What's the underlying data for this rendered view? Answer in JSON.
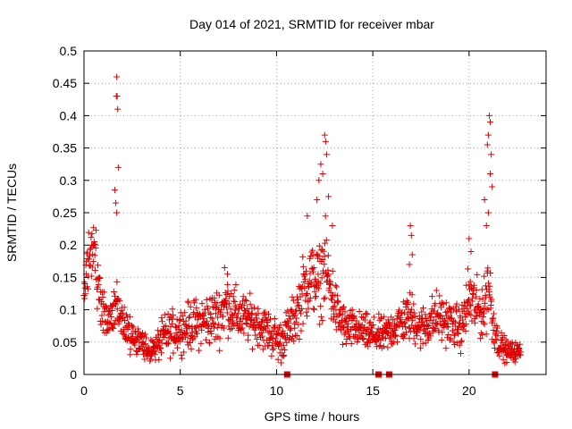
{
  "chart_data": {
    "type": "scatter",
    "title": "Day 014 of 2021, SRMTID for receiver mbar",
    "xlabel": "GPS time / hours",
    "ylabel": "SRMTID / TECUs",
    "xlim": [
      0,
      24
    ],
    "ylim": [
      0,
      0.5
    ],
    "x_ticks": [
      0,
      5,
      10,
      15,
      20
    ],
    "x_tick_labels": [
      "0",
      "5",
      "10",
      "15",
      "20"
    ],
    "y_ticks": [
      0,
      0.05,
      0.1,
      0.15,
      0.2,
      0.25,
      0.3,
      0.35,
      0.4,
      0.45,
      0.5
    ],
    "y_tick_labels": [
      "0",
      "0.05",
      "0.1",
      "0.15",
      "0.2",
      "0.25",
      "0.3",
      "0.35",
      "0.4",
      "0.45",
      "0.5"
    ],
    "grid": true,
    "marker": "plus",
    "series_color": "#e00000",
    "envelope": {
      "x": [
        0.0,
        0.2,
        0.4,
        0.6,
        0.9,
        1.2,
        1.5,
        1.7,
        1.9,
        2.2,
        2.6,
        3.0,
        3.3,
        3.7,
        4.2,
        5.0,
        6.0,
        7.0,
        7.4,
        8.0,
        9.0,
        9.8,
        10.2,
        10.6,
        11.0,
        11.4,
        11.8,
        12.2,
        12.5,
        12.8,
        13.2,
        13.6,
        14.2,
        15.0,
        15.6,
        16.4,
        17.0,
        17.5,
        18.3,
        19.0,
        19.6,
        20.0,
        20.4,
        20.8,
        21.0,
        21.2,
        21.5,
        22.0,
        22.7
      ],
      "mean": [
        0.12,
        0.17,
        0.2,
        0.17,
        0.11,
        0.08,
        0.09,
        0.12,
        0.09,
        0.07,
        0.06,
        0.05,
        0.035,
        0.04,
        0.06,
        0.07,
        0.08,
        0.09,
        0.11,
        0.09,
        0.08,
        0.06,
        0.05,
        0.07,
        0.09,
        0.13,
        0.15,
        0.14,
        0.17,
        0.13,
        0.09,
        0.07,
        0.07,
        0.06,
        0.06,
        0.08,
        0.09,
        0.07,
        0.09,
        0.08,
        0.07,
        0.12,
        0.1,
        0.1,
        0.15,
        0.09,
        0.05,
        0.035,
        0.035
      ],
      "spread": [
        0.04,
        0.05,
        0.05,
        0.05,
        0.04,
        0.03,
        0.03,
        0.05,
        0.04,
        0.03,
        0.025,
        0.02,
        0.015,
        0.02,
        0.03,
        0.03,
        0.035,
        0.04,
        0.04,
        0.035,
        0.03,
        0.03,
        0.03,
        0.03,
        0.035,
        0.05,
        0.05,
        0.05,
        0.06,
        0.05,
        0.035,
        0.03,
        0.025,
        0.025,
        0.025,
        0.03,
        0.035,
        0.03,
        0.035,
        0.03,
        0.03,
        0.05,
        0.04,
        0.04,
        0.06,
        0.04,
        0.02,
        0.015,
        0.012
      ]
    },
    "highlight_points": [
      {
        "x": 1.7,
        "y": 0.46
      },
      {
        "x": 1.72,
        "y": 0.43
      },
      {
        "x": 1.68,
        "y": 0.43
      },
      {
        "x": 1.75,
        "y": 0.41
      },
      {
        "x": 1.78,
        "y": 0.32
      },
      {
        "x": 1.6,
        "y": 0.285
      },
      {
        "x": 1.65,
        "y": 0.265
      },
      {
        "x": 1.7,
        "y": 0.25
      },
      {
        "x": 12.5,
        "y": 0.37
      },
      {
        "x": 12.55,
        "y": 0.36
      },
      {
        "x": 12.6,
        "y": 0.34
      },
      {
        "x": 12.3,
        "y": 0.325
      },
      {
        "x": 12.4,
        "y": 0.31
      },
      {
        "x": 12.2,
        "y": 0.3
      },
      {
        "x": 12.7,
        "y": 0.275
      },
      {
        "x": 12.1,
        "y": 0.27
      },
      {
        "x": 11.6,
        "y": 0.245
      },
      {
        "x": 12.9,
        "y": 0.23
      },
      {
        "x": 21.05,
        "y": 0.4
      },
      {
        "x": 21.1,
        "y": 0.39
      },
      {
        "x": 21.0,
        "y": 0.37
      },
      {
        "x": 20.95,
        "y": 0.355
      },
      {
        "x": 21.15,
        "y": 0.34
      },
      {
        "x": 21.1,
        "y": 0.31
      },
      {
        "x": 21.2,
        "y": 0.29
      },
      {
        "x": 20.8,
        "y": 0.27
      },
      {
        "x": 21.0,
        "y": 0.25
      },
      {
        "x": 20.9,
        "y": 0.23
      },
      {
        "x": 20.0,
        "y": 0.21
      },
      {
        "x": 20.1,
        "y": 0.19
      },
      {
        "x": 16.95,
        "y": 0.23
      },
      {
        "x": 17.0,
        "y": 0.215
      },
      {
        "x": 17.05,
        "y": 0.185
      },
      {
        "x": 16.9,
        "y": 0.17
      },
      {
        "x": 7.3,
        "y": 0.165
      },
      {
        "x": 7.45,
        "y": 0.155
      }
    ],
    "zero_markers_x": [
      10.55,
      15.3,
      15.85,
      21.35
    ]
  }
}
